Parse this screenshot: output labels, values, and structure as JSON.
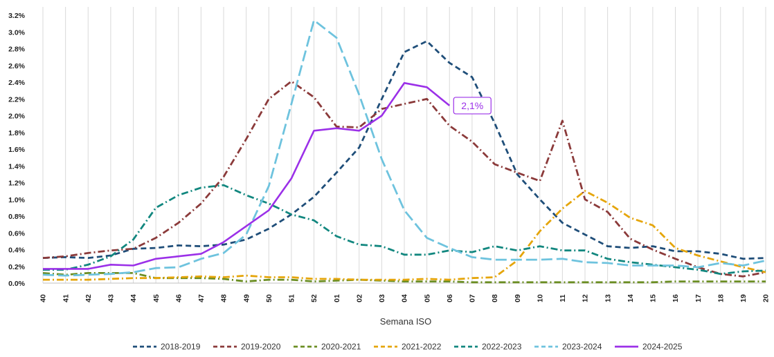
{
  "chart_data": {
    "type": "line",
    "title": "",
    "xlabel": "Semana ISO",
    "ylabel": "",
    "ylim": [
      0,
      3.2
    ],
    "yticks": [
      0.0,
      0.2,
      0.4,
      0.6,
      0.8,
      1.0,
      1.2,
      1.4,
      1.6,
      1.8,
      2.0,
      2.2,
      2.4,
      2.6,
      2.8,
      3.0,
      3.2
    ],
    "ytick_labels": [
      "0.0%",
      "0.2%",
      "0.4%",
      "0.6%",
      "0.8%",
      "1.0%",
      "1.2%",
      "1.4%",
      "1.6%",
      "1.8%",
      "2.0%",
      "2.2%",
      "2.4%",
      "2.6%",
      "2.8%",
      "3.0%",
      "3.2%"
    ],
    "categories": [
      "40",
      "41",
      "42",
      "43",
      "44",
      "45",
      "46",
      "47",
      "48",
      "49",
      "50",
      "51",
      "52",
      "01",
      "02",
      "03",
      "04",
      "05",
      "06",
      "07",
      "08",
      "09",
      "10",
      "11",
      "12",
      "13",
      "14",
      "15",
      "16",
      "17",
      "18",
      "19",
      "20"
    ],
    "grid": "vertical",
    "legend_position": "bottom",
    "annotation": {
      "text": "2,1%",
      "series": "2024-2025",
      "category": "06",
      "color": "#9b30e8"
    },
    "series": [
      {
        "name": "2018-2019",
        "color": "#1f4e79",
        "dash": "dash",
        "values": [
          0.3,
          0.31,
          0.3,
          0.33,
          0.41,
          0.42,
          0.45,
          0.44,
          0.46,
          0.52,
          0.65,
          0.82,
          1.03,
          1.32,
          1.62,
          2.2,
          2.76,
          2.89,
          2.63,
          2.46,
          1.91,
          1.3,
          1.0,
          0.72,
          0.58,
          0.44,
          0.42,
          0.44,
          0.38,
          0.38,
          0.35,
          0.29,
          0.3
        ]
      },
      {
        "name": "2019-2020",
        "color": "#8b3a3a",
        "dash": "dashdot",
        "values": [
          0.3,
          0.32,
          0.36,
          0.39,
          0.41,
          0.54,
          0.72,
          0.95,
          1.27,
          1.72,
          2.2,
          2.41,
          2.22,
          1.87,
          1.86,
          2.08,
          2.14,
          2.2,
          1.88,
          1.69,
          1.42,
          1.32,
          1.22,
          1.94,
          1.0,
          0.85,
          0.53,
          0.4,
          0.29,
          0.19,
          0.11,
          0.08,
          0.13
        ]
      },
      {
        "name": "2020-2021",
        "color": "#6b8e23",
        "dash": "dashdot",
        "values": [
          0.12,
          0.1,
          0.12,
          0.12,
          0.12,
          0.06,
          0.06,
          0.06,
          0.05,
          0.02,
          0.04,
          0.04,
          0.02,
          0.03,
          0.04,
          0.03,
          0.02,
          0.02,
          0.02,
          0.01,
          0.01,
          0.01,
          0.01,
          0.01,
          0.01,
          0.01,
          0.01,
          0.01,
          0.02,
          0.02,
          0.02,
          0.02,
          0.02
        ]
      },
      {
        "name": "2021-2022",
        "color": "#e5a50a",
        "dash": "dashdot",
        "values": [
          0.04,
          0.04,
          0.04,
          0.05,
          0.06,
          0.06,
          0.07,
          0.08,
          0.07,
          0.09,
          0.07,
          0.07,
          0.05,
          0.05,
          0.04,
          0.04,
          0.04,
          0.05,
          0.04,
          0.06,
          0.07,
          0.27,
          0.62,
          0.89,
          1.1,
          0.96,
          0.78,
          0.69,
          0.42,
          0.33,
          0.26,
          0.19,
          0.13
        ]
      },
      {
        "name": "2022-2023",
        "color": "#12877f",
        "dash": "dashdot",
        "values": [
          0.16,
          0.16,
          0.22,
          0.32,
          0.52,
          0.9,
          1.05,
          1.14,
          1.17,
          1.05,
          0.95,
          0.82,
          0.75,
          0.56,
          0.46,
          0.44,
          0.34,
          0.34,
          0.39,
          0.37,
          0.44,
          0.39,
          0.44,
          0.39,
          0.39,
          0.29,
          0.25,
          0.22,
          0.19,
          0.16,
          0.11,
          0.14,
          0.15
        ]
      },
      {
        "name": "2023-2024",
        "color": "#6ec3de",
        "dash": "longdash",
        "values": [
          0.1,
          0.09,
          0.1,
          0.11,
          0.13,
          0.18,
          0.19,
          0.29,
          0.36,
          0.58,
          1.16,
          2.14,
          3.14,
          2.93,
          2.25,
          1.48,
          0.87,
          0.54,
          0.42,
          0.31,
          0.28,
          0.28,
          0.28,
          0.29,
          0.25,
          0.24,
          0.21,
          0.21,
          0.21,
          0.19,
          0.24,
          0.21,
          0.27
        ]
      },
      {
        "name": "2024-2025",
        "color": "#9b30e8",
        "dash": "solid",
        "values": [
          0.17,
          0.17,
          0.17,
          0.22,
          0.21,
          0.29,
          0.32,
          0.35,
          0.49,
          0.68,
          0.87,
          1.25,
          1.82,
          1.85,
          1.82,
          2.0,
          2.39,
          2.34,
          2.12,
          null,
          null,
          null,
          null,
          null,
          null,
          null,
          null,
          null,
          null,
          null,
          null,
          null,
          null
        ]
      }
    ]
  }
}
